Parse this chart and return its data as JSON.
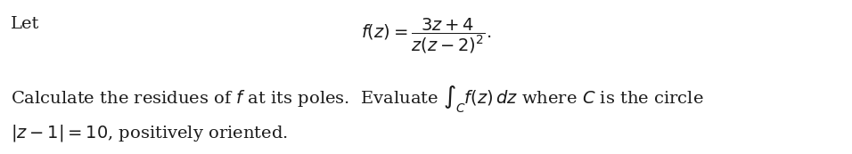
{
  "background_color": "#ffffff",
  "fig_width": 9.56,
  "fig_height": 1.73,
  "dpi": 100,
  "text_color": "#1a1a1a",
  "let_text": "Let",
  "let_fontsize": 14,
  "formula": "$f(z) = \\dfrac{3z+4}{z(z-2)^2}.$",
  "formula_fontsize": 14,
  "body_line1": "Calculate the residues of $f$ at its poles.  Evaluate $\\int_C f(z)\\,dz$ where $C$ is the circle",
  "body_line2": "$|z - 1| = 10$, positively oriented.",
  "body_fontsize": 14
}
